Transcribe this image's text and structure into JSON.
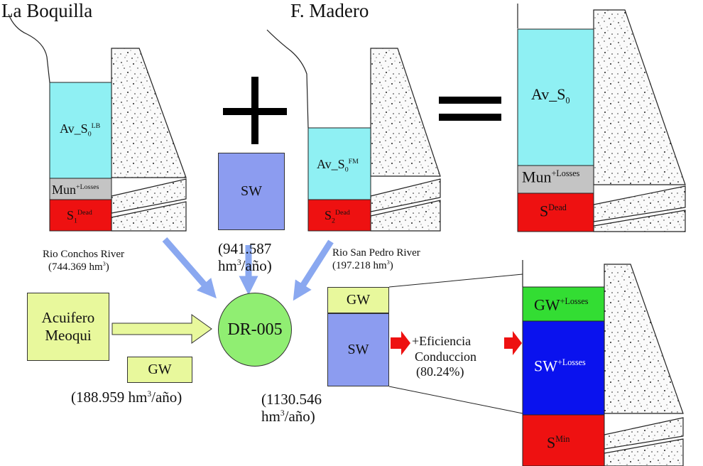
{
  "titles": {
    "left": "La Boquilla",
    "middle": "F. Madero"
  },
  "symbols": {
    "plus": "+",
    "equals": "="
  },
  "reservoir_lb": {
    "av_base": "Av_S",
    "av_sub": "0",
    "av_sup": "LB",
    "mun_base": "Mun",
    "mun_sup": "+Losses",
    "dead_base": "S",
    "dead_sub": "1",
    "dead_sup": "Dead"
  },
  "reservoir_fm": {
    "av_base": "Av_S",
    "av_sub": "0",
    "av_sup": "FM",
    "dead_base": "S",
    "dead_sub": "2",
    "dead_sup": "Dead"
  },
  "reservoir_total": {
    "av_base": "Av_S",
    "av_sub": "0",
    "mun_base": "Mun",
    "mun_sup": "+Losses",
    "dead_base": "S",
    "dead_sup": "Dead"
  },
  "sw_box": {
    "label": "SW",
    "value_line1": "(941.587",
    "value_line2_pre": "hm",
    "value_line2_sup": "3",
    "value_line2_post": "/año)"
  },
  "rivers": {
    "conchos_name": "Rio Conchos River",
    "conchos_value_pre": "(744.369 hm",
    "conchos_value_sup": "3",
    "conchos_value_post": ")",
    "sanpedro_name": "Rio San Pedro River",
    "sanpedro_value_pre": "(197.218 hm",
    "sanpedro_value_sup": "3",
    "sanpedro_value_post": ")"
  },
  "aquifer": {
    "line1": "Acuifero",
    "line2": "Meoqui"
  },
  "gw_box": {
    "label": "GW",
    "value_pre": "(188.959 hm",
    "value_sup": "3",
    "value_post": "/año)"
  },
  "district": {
    "label": "DR-005",
    "total_line1": "(1130.546",
    "total_line2_pre": "hm",
    "total_line2_sup": "3",
    "total_line2_post": "/año)"
  },
  "supply": {
    "gw": "GW",
    "sw": "SW"
  },
  "efficiency": {
    "line1": "+Eficiencia",
    "line2": "Conduccion",
    "line3": "(80.24%)"
  },
  "storage_right": {
    "gw_base": "GW",
    "gw_sup": "+Losses",
    "sw_base": "SW",
    "sw_sup": "+Losses",
    "min_base": "S",
    "min_sup": "Min"
  },
  "colors": {
    "cyan": "#8ff0f3",
    "gray": "#c4c4c4",
    "red": "#ee1111",
    "sw_blue": "#8c9cf0",
    "lime": "#e8f89c",
    "green": "#33dd33",
    "deep_blue": "#0a12ee",
    "arrow_blue": "#8aa8f0",
    "arrow_red": "#ee1111"
  }
}
